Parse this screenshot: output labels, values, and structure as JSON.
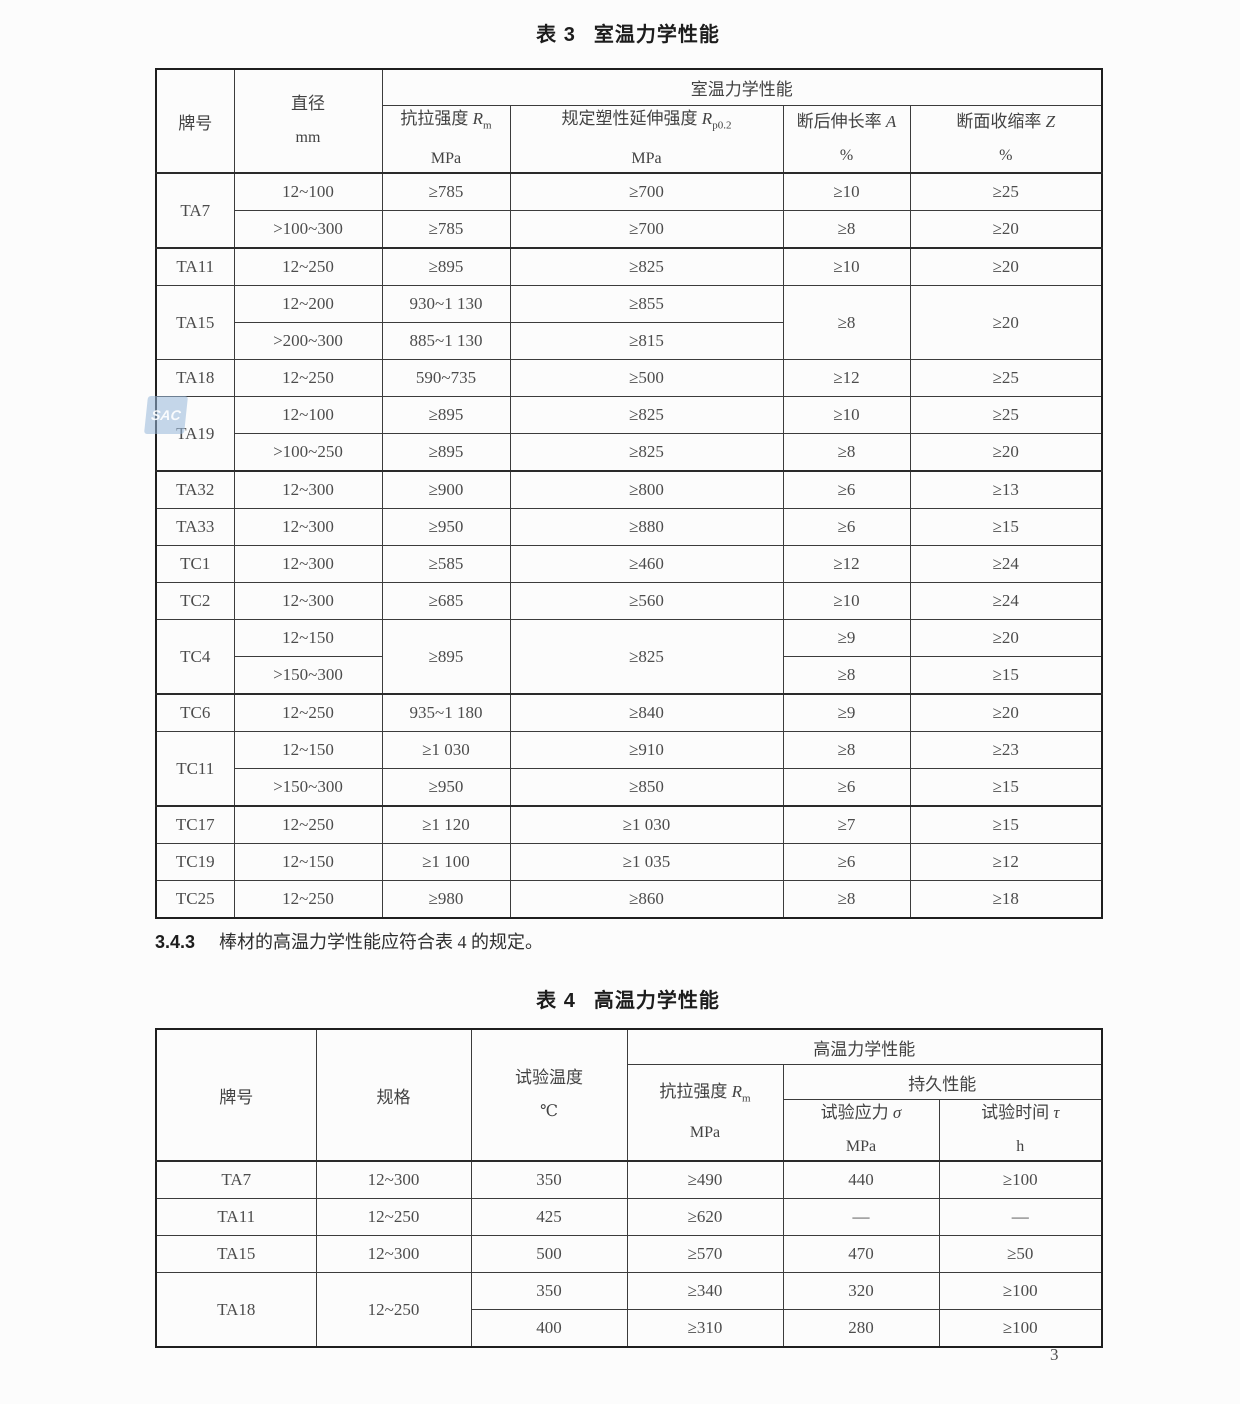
{
  "page": {
    "number": "3",
    "watermark": "SAC"
  },
  "section": {
    "num": "3.4.3",
    "text": "棒材的高温力学性能应符合表 4 的规定。"
  },
  "table3": {
    "title_label": "表 3",
    "title_text": "室温力学性能",
    "h_grade": "牌号",
    "h_dia": "直径",
    "h_dia_unit": "mm",
    "h_span": "室温力学性能",
    "cols": [
      {
        "name": "抗拉强度",
        "sym": "R",
        "sub": "m",
        "unit": "MPa"
      },
      {
        "name": "规定塑性延伸强度",
        "sym": "R",
        "sub": "p0.2",
        "unit": "MPa"
      },
      {
        "name": "断后伸长率",
        "sym": "A",
        "sub": "",
        "unit": "%"
      },
      {
        "name": "断面收缩率",
        "sym": "Z",
        "sub": "",
        "unit": "%"
      }
    ],
    "rows": [
      {
        "cls": "ht",
        "c": [
          {
            "t": "TA7",
            "rs": 2
          },
          {
            "t": "12~100"
          },
          {
            "t": "≥785"
          },
          {
            "t": "≥700"
          },
          {
            "t": "≥10"
          },
          {
            "t": "≥25"
          }
        ]
      },
      {
        "c": [
          {
            "t": ">100~300"
          },
          {
            "t": "≥785"
          },
          {
            "t": "≥700"
          },
          {
            "t": "≥8"
          },
          {
            "t": "≥20"
          }
        ]
      },
      {
        "cls": "ht",
        "c": [
          {
            "t": "TA11"
          },
          {
            "t": "12~250"
          },
          {
            "t": "≥895"
          },
          {
            "t": "≥825"
          },
          {
            "t": "≥10"
          },
          {
            "t": "≥20"
          }
        ]
      },
      {
        "c": [
          {
            "t": "TA15",
            "rs": 2
          },
          {
            "t": "12~200"
          },
          {
            "t": "930~1 130"
          },
          {
            "t": "≥855"
          },
          {
            "t": "≥8",
            "rs": 2
          },
          {
            "t": "≥20",
            "rs": 2
          }
        ]
      },
      {
        "c": [
          {
            "t": ">200~300"
          },
          {
            "t": "885~1 130"
          },
          {
            "t": "≥815"
          }
        ]
      },
      {
        "c": [
          {
            "t": "TA18"
          },
          {
            "t": "12~250"
          },
          {
            "t": "590~735"
          },
          {
            "t": "≥500"
          },
          {
            "t": "≥12"
          },
          {
            "t": "≥25"
          }
        ]
      },
      {
        "c": [
          {
            "t": "TA19",
            "rs": 2
          },
          {
            "t": "12~100"
          },
          {
            "t": "≥895"
          },
          {
            "t": "≥825"
          },
          {
            "t": "≥10"
          },
          {
            "t": "≥25"
          }
        ]
      },
      {
        "c": [
          {
            "t": ">100~250"
          },
          {
            "t": "≥895"
          },
          {
            "t": "≥825"
          },
          {
            "t": "≥8"
          },
          {
            "t": "≥20"
          }
        ]
      },
      {
        "cls": "ht",
        "c": [
          {
            "t": "TA32"
          },
          {
            "t": "12~300"
          },
          {
            "t": "≥900"
          },
          {
            "t": "≥800"
          },
          {
            "t": "≥6"
          },
          {
            "t": "≥13"
          }
        ]
      },
      {
        "c": [
          {
            "t": "TA33"
          },
          {
            "t": "12~300"
          },
          {
            "t": "≥950"
          },
          {
            "t": "≥880"
          },
          {
            "t": "≥6"
          },
          {
            "t": "≥15"
          }
        ]
      },
      {
        "c": [
          {
            "t": "TC1"
          },
          {
            "t": "12~300"
          },
          {
            "t": "≥585"
          },
          {
            "t": "≥460"
          },
          {
            "t": "≥12"
          },
          {
            "t": "≥24"
          }
        ]
      },
      {
        "c": [
          {
            "t": "TC2"
          },
          {
            "t": "12~300"
          },
          {
            "t": "≥685"
          },
          {
            "t": "≥560"
          },
          {
            "t": "≥10"
          },
          {
            "t": "≥24"
          }
        ]
      },
      {
        "c": [
          {
            "t": "TC4",
            "rs": 2
          },
          {
            "t": "12~150"
          },
          {
            "t": "≥895",
            "rs": 2
          },
          {
            "t": "≥825",
            "rs": 2
          },
          {
            "t": "≥9"
          },
          {
            "t": "≥20"
          }
        ]
      },
      {
        "c": [
          {
            "t": ">150~300"
          },
          {
            "t": "≥8"
          },
          {
            "t": "≥15"
          }
        ]
      },
      {
        "cls": "ht",
        "c": [
          {
            "t": "TC6"
          },
          {
            "t": "12~250"
          },
          {
            "t": "935~1 180"
          },
          {
            "t": "≥840"
          },
          {
            "t": "≥9"
          },
          {
            "t": "≥20"
          }
        ]
      },
      {
        "c": [
          {
            "t": "TC11",
            "rs": 2
          },
          {
            "t": "12~150"
          },
          {
            "t": "≥1 030"
          },
          {
            "t": "≥910"
          },
          {
            "t": "≥8"
          },
          {
            "t": "≥23"
          }
        ]
      },
      {
        "c": [
          {
            "t": ">150~300"
          },
          {
            "t": "≥950"
          },
          {
            "t": "≥850"
          },
          {
            "t": "≥6"
          },
          {
            "t": "≥15"
          }
        ]
      },
      {
        "cls": "ht",
        "c": [
          {
            "t": "TC17"
          },
          {
            "t": "12~250"
          },
          {
            "t": "≥1 120"
          },
          {
            "t": "≥1 030"
          },
          {
            "t": "≥7"
          },
          {
            "t": "≥15"
          }
        ]
      },
      {
        "c": [
          {
            "t": "TC19"
          },
          {
            "t": "12~150"
          },
          {
            "t": "≥1 100"
          },
          {
            "t": "≥1 035"
          },
          {
            "t": "≥6"
          },
          {
            "t": "≥12"
          }
        ]
      },
      {
        "c": [
          {
            "t": "TC25"
          },
          {
            "t": "12~250"
          },
          {
            "t": "≥980"
          },
          {
            "t": "≥860"
          },
          {
            "t": "≥8"
          },
          {
            "t": "≥18"
          }
        ]
      }
    ]
  },
  "table4": {
    "title_label": "表 4",
    "title_text": "高温力学性能",
    "h_grade": "牌号",
    "h_spec": "规格",
    "h_temp": "试验温度",
    "h_temp_unit": "℃",
    "h_span": "高温力学性能",
    "h_endurance": "持久性能",
    "cols": [
      {
        "name": "抗拉强度",
        "sym": "R",
        "sub": "m",
        "unit": "MPa"
      },
      {
        "name": "试验应力",
        "sym": "σ",
        "sub": "",
        "unit": "MPa"
      },
      {
        "name": "试验时间",
        "sym": "τ",
        "sub": "",
        "unit": "h"
      }
    ],
    "rows": [
      {
        "cls": "ht",
        "c": [
          {
            "t": "TA7"
          },
          {
            "t": "12~300"
          },
          {
            "t": "350"
          },
          {
            "t": "≥490"
          },
          {
            "t": "440"
          },
          {
            "t": "≥100"
          }
        ]
      },
      {
        "c": [
          {
            "t": "TA11"
          },
          {
            "t": "12~250"
          },
          {
            "t": "425"
          },
          {
            "t": "≥620"
          },
          {
            "t": "—"
          },
          {
            "t": "—"
          }
        ]
      },
      {
        "c": [
          {
            "t": "TA15"
          },
          {
            "t": "12~300"
          },
          {
            "t": "500"
          },
          {
            "t": "≥570"
          },
          {
            "t": "470"
          },
          {
            "t": "≥50"
          }
        ]
      },
      {
        "c": [
          {
            "t": "TA18",
            "rs": 2
          },
          {
            "t": "12~250",
            "rs": 2
          },
          {
            "t": "350"
          },
          {
            "t": "≥340"
          },
          {
            "t": "320"
          },
          {
            "t": "≥100"
          }
        ]
      },
      {
        "c": [
          {
            "t": "400"
          },
          {
            "t": "≥310"
          },
          {
            "t": "280"
          },
          {
            "t": "≥100"
          }
        ]
      }
    ]
  }
}
